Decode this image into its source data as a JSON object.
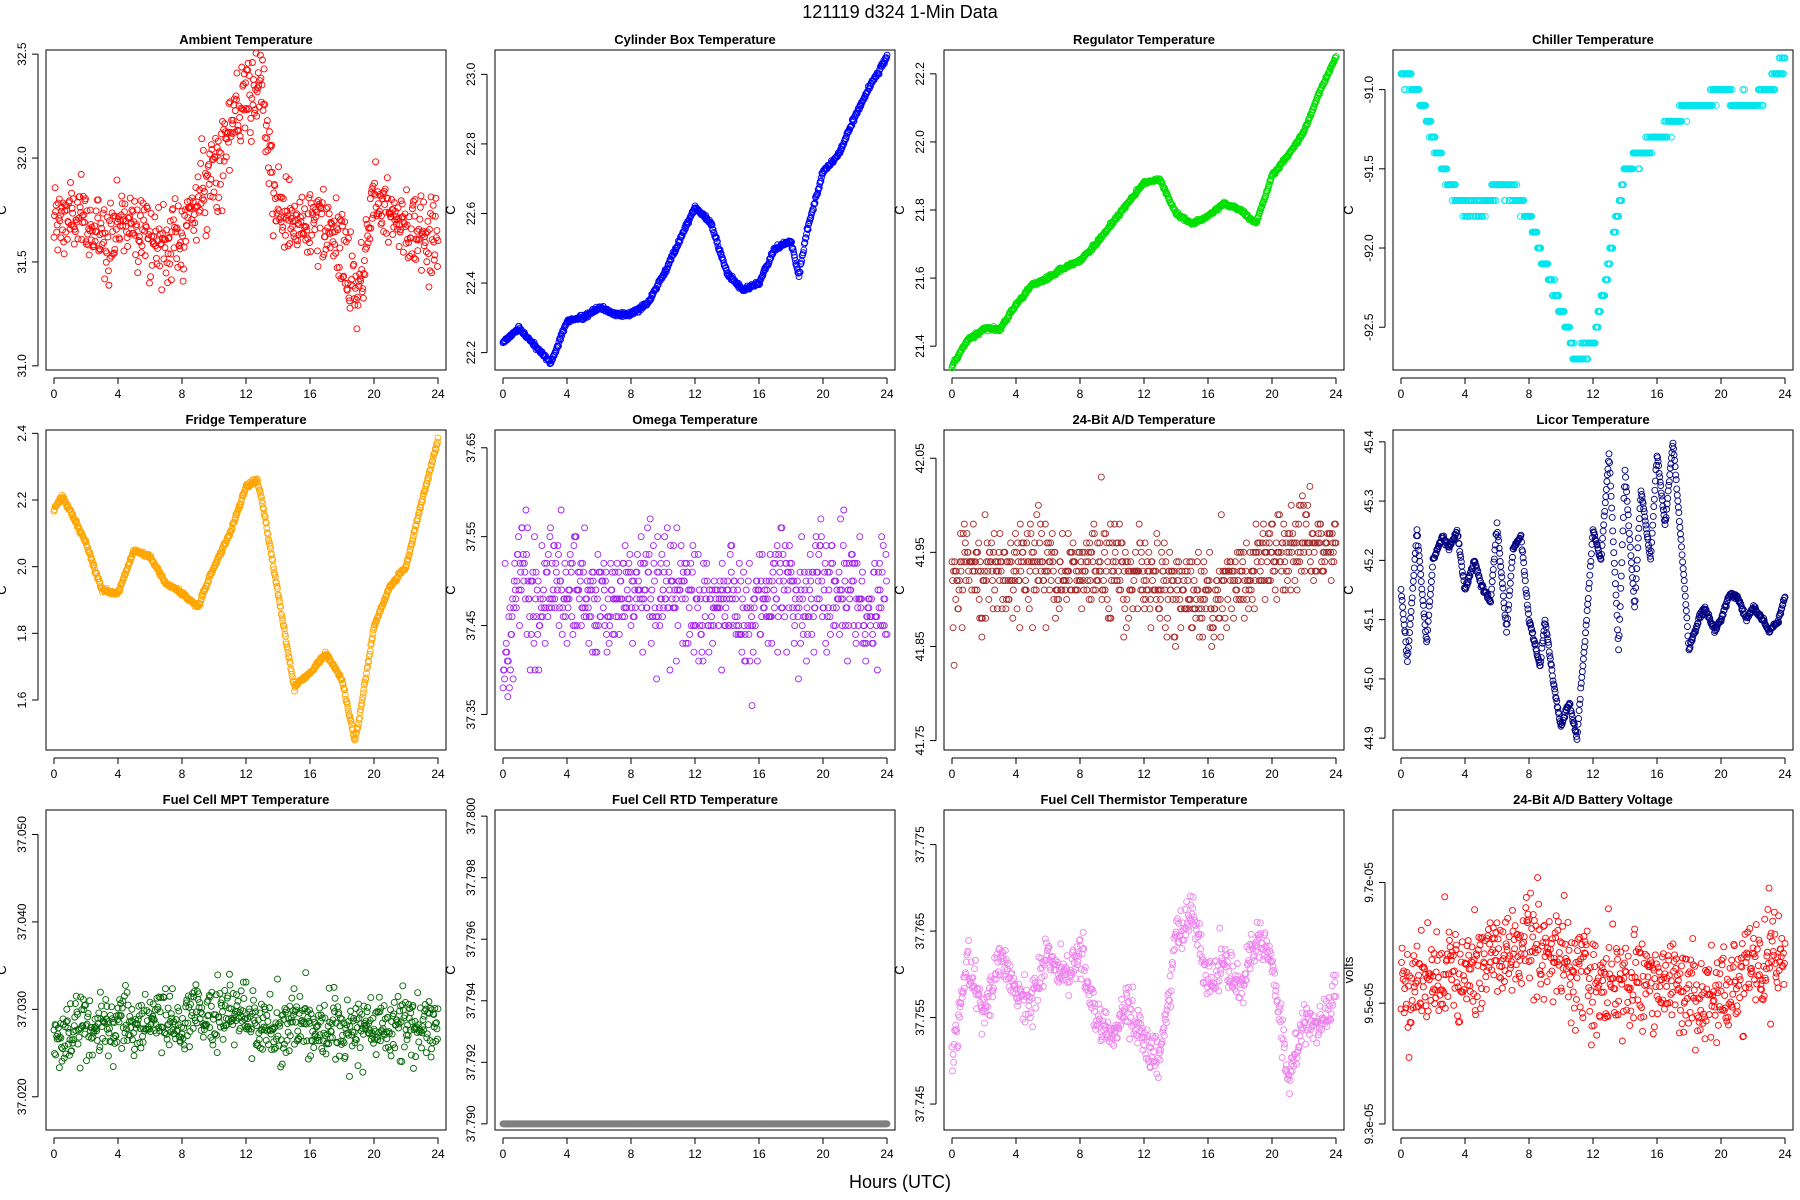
{
  "page_title": "121119    d324    1-Min Data",
  "x_axis_caption": "Hours (UTC)",
  "chart_data": [
    {
      "type": "scatter",
      "title": "Ambient Temperature",
      "ylabel": "C",
      "color": "#ff0000",
      "ylim": [
        30.98,
        32.52
      ],
      "yticks": [
        31.0,
        31.5,
        32.0,
        32.5
      ],
      "ytick_labels": [
        "31.0",
        "31.5",
        "32.0",
        "32.5"
      ],
      "xlim": [
        -0.5,
        24.5
      ],
      "xticks": [
        0,
        4,
        8,
        12,
        16,
        20,
        24
      ],
      "xtick_labels": [
        "0",
        "4",
        "8",
        "12",
        "16",
        "20",
        "24"
      ],
      "noise": 0.17,
      "quantum": 0,
      "x": [
        0,
        1,
        2,
        3,
        4,
        5,
        6,
        7,
        8,
        9,
        10,
        11,
        12,
        13,
        14,
        15,
        16,
        17,
        18,
        19,
        20,
        21,
        22,
        23,
        24
      ],
      "y": [
        31.68,
        31.72,
        31.68,
        31.62,
        31.68,
        31.72,
        31.62,
        31.58,
        31.64,
        31.8,
        31.96,
        32.12,
        32.28,
        32.3,
        31.72,
        31.68,
        31.7,
        31.64,
        31.58,
        31.32,
        31.82,
        31.78,
        31.66,
        31.64,
        31.6
      ]
    },
    {
      "type": "scatter",
      "title": "Cylinder Box Temperature",
      "ylabel": "C",
      "color": "#0000ff",
      "ylim": [
        22.15,
        23.07
      ],
      "yticks": [
        22.2,
        22.4,
        22.6,
        22.8,
        23.0
      ],
      "ytick_labels": [
        "22.2",
        "22.4",
        "22.6",
        "22.8",
        "23.0"
      ],
      "xlim": [
        -0.5,
        24.5
      ],
      "xticks": [
        0,
        4,
        8,
        12,
        16,
        20,
        24
      ],
      "xtick_labels": [
        "0",
        "4",
        "8",
        "12",
        "16",
        "20",
        "24"
      ],
      "noise": 0.006,
      "quantum": 0,
      "x": [
        0,
        1,
        2,
        3,
        3.5,
        4,
        5,
        6,
        7,
        8,
        9,
        10,
        11,
        12,
        13,
        14,
        15,
        16,
        17,
        18,
        18.5,
        19,
        20,
        21,
        22,
        23,
        24
      ],
      "y": [
        22.23,
        22.27,
        22.22,
        22.17,
        22.23,
        22.29,
        22.3,
        22.33,
        22.31,
        22.31,
        22.34,
        22.42,
        22.52,
        22.62,
        22.57,
        22.43,
        22.38,
        22.4,
        22.5,
        22.52,
        22.42,
        22.55,
        22.72,
        22.77,
        22.88,
        22.97,
        23.05
      ]
    },
    {
      "type": "scatter",
      "title": "Regulator Temperature",
      "ylabel": "C",
      "color": "#00e000",
      "ylim": [
        21.33,
        22.27
      ],
      "yticks": [
        21.4,
        21.6,
        21.8,
        22.0,
        22.2
      ],
      "ytick_labels": [
        "21.4",
        "21.6",
        "21.8",
        "22.0",
        "22.2"
      ],
      "xlim": [
        -0.5,
        24.5
      ],
      "xticks": [
        0,
        4,
        8,
        12,
        16,
        20,
        24
      ],
      "xtick_labels": [
        "0",
        "4",
        "8",
        "12",
        "16",
        "20",
        "24"
      ],
      "noise": 0.005,
      "quantum": 0,
      "x": [
        0,
        1,
        2,
        3,
        4,
        5,
        6,
        7,
        8,
        9,
        10,
        11,
        12,
        13,
        14,
        15,
        16,
        17,
        18,
        19,
        20,
        21,
        22,
        23,
        24
      ],
      "y": [
        21.34,
        21.42,
        21.45,
        21.45,
        21.52,
        21.58,
        21.6,
        21.63,
        21.65,
        21.7,
        21.76,
        21.82,
        21.88,
        21.89,
        21.79,
        21.76,
        21.78,
        21.82,
        21.8,
        21.76,
        21.9,
        21.96,
        22.03,
        22.15,
        22.25
      ]
    },
    {
      "type": "scatter",
      "title": "Chiller Temperature",
      "ylabel": "C",
      "color": "#00e5ee",
      "ylim": [
        -92.77,
        -90.75
      ],
      "yticks": [
        -92.5,
        -92.0,
        -91.5,
        -91.0
      ],
      "ytick_labels": [
        "-92.5",
        "-92.0",
        "-91.5",
        "-91.0"
      ],
      "xlim": [
        -0.5,
        24.5
      ],
      "xticks": [
        0,
        4,
        8,
        12,
        16,
        20,
        24
      ],
      "xtick_labels": [
        "0",
        "4",
        "8",
        "12",
        "16",
        "20",
        "24"
      ],
      "noise": 0.04,
      "quantum": 0.1,
      "x": [
        0,
        1,
        2,
        3,
        4,
        5,
        6,
        7,
        8,
        9,
        10,
        11,
        12,
        13,
        14,
        15,
        16,
        17,
        18,
        19,
        20,
        21,
        22,
        23,
        24
      ],
      "y": [
        -90.9,
        -91.0,
        -91.3,
        -91.6,
        -91.75,
        -91.75,
        -91.6,
        -91.65,
        -91.8,
        -92.1,
        -92.4,
        -92.7,
        -92.6,
        -92.1,
        -91.5,
        -91.4,
        -91.3,
        -91.2,
        -91.1,
        -91.1,
        -91.0,
        -91.1,
        -91.1,
        -91.0,
        -90.8
      ]
    },
    {
      "type": "scatter",
      "title": "Fridge Temperature",
      "ylabel": "C",
      "color": "#ffa500",
      "ylim": [
        1.45,
        2.41
      ],
      "yticks": [
        1.6,
        1.8,
        2.0,
        2.2,
        2.4
      ],
      "ytick_labels": [
        "1.6",
        "1.8",
        "2.0",
        "2.2",
        "2.4"
      ],
      "xlim": [
        -0.5,
        24.5
      ],
      "xticks": [
        0,
        4,
        8,
        12,
        16,
        20,
        24
      ],
      "xtick_labels": [
        "0",
        "4",
        "8",
        "12",
        "16",
        "20",
        "24"
      ],
      "noise": 0.006,
      "quantum": 0,
      "x": [
        0,
        0.5,
        1,
        2,
        3,
        4,
        5,
        6,
        7,
        8,
        9,
        10,
        11,
        12,
        12.7,
        13,
        14,
        15,
        16,
        17,
        18,
        18.8,
        19,
        20,
        21,
        22,
        23,
        24
      ],
      "y": [
        2.17,
        2.21,
        2.17,
        2.07,
        1.93,
        1.92,
        2.05,
        2.03,
        1.95,
        1.92,
        1.88,
        2.0,
        2.1,
        2.24,
        2.26,
        2.2,
        1.92,
        1.64,
        1.68,
        1.74,
        1.66,
        1.48,
        1.52,
        1.82,
        1.94,
        2.0,
        2.2,
        2.38
      ]
    },
    {
      "type": "scatter",
      "title": "Omega Temperature",
      "ylabel": "C",
      "color": "#a020f0",
      "ylim": [
        37.31,
        37.67
      ],
      "yticks": [
        37.35,
        37.45,
        37.55,
        37.65
      ],
      "ytick_labels": [
        "37.35",
        "37.45",
        "37.55",
        "37.65"
      ],
      "xlim": [
        -0.5,
        24.5
      ],
      "xticks": [
        0,
        4,
        8,
        12,
        16,
        20,
        24
      ],
      "xtick_labels": [
        "0",
        "4",
        "8",
        "12",
        "16",
        "20",
        "24"
      ],
      "noise": 0.06,
      "quantum": 0.01,
      "x": [
        0,
        1,
        2,
        3,
        4,
        5,
        6,
        7,
        8,
        9,
        10,
        11,
        12,
        13,
        14,
        15,
        16,
        17,
        18,
        19,
        20,
        21,
        22,
        23,
        24
      ],
      "y": [
        37.38,
        37.52,
        37.46,
        37.5,
        37.49,
        37.49,
        37.47,
        37.48,
        37.49,
        37.5,
        37.49,
        37.5,
        37.46,
        37.47,
        37.49,
        37.46,
        37.48,
        37.5,
        37.48,
        37.47,
        37.5,
        37.49,
        37.48,
        37.47,
        37.48
      ]
    },
    {
      "type": "scatter",
      "title": "24-Bit A/D Temperature",
      "ylabel": "C",
      "color": "#a52a2a",
      "ylim": [
        41.74,
        42.08
      ],
      "yticks": [
        41.75,
        41.85,
        41.95,
        42.05
      ],
      "ytick_labels": [
        "41.75",
        "41.85",
        "41.95",
        "42.05"
      ],
      "xlim": [
        -0.5,
        24.5
      ],
      "xticks": [
        0,
        4,
        8,
        12,
        16,
        20,
        24
      ],
      "xtick_labels": [
        "0",
        "4",
        "8",
        "12",
        "16",
        "20",
        "24"
      ],
      "noise": 0.045,
      "quantum": 0.01,
      "x": [
        0,
        1,
        2,
        3,
        4,
        5,
        6,
        7,
        8,
        9,
        10,
        11,
        12,
        13,
        14,
        15,
        16,
        17,
        18,
        19,
        20,
        21,
        22,
        23,
        24
      ],
      "y": [
        41.91,
        41.94,
        41.93,
        41.93,
        41.93,
        41.94,
        41.93,
        41.93,
        41.93,
        41.94,
        41.93,
        41.92,
        41.92,
        41.92,
        41.91,
        41.9,
        41.9,
        41.91,
        41.92,
        41.93,
        41.95,
        41.95,
        41.96,
        41.96,
        41.96
      ]
    },
    {
      "type": "scatter",
      "title": "Licor Temperature",
      "ylabel": "C",
      "color": "#000080",
      "ylim": [
        44.88,
        45.42
      ],
      "yticks": [
        44.9,
        45.0,
        45.1,
        45.2,
        45.3,
        45.4
      ],
      "ytick_labels": [
        "44.9",
        "45.0",
        "45.1",
        "45.2",
        "45.3",
        "45.4"
      ],
      "xlim": [
        -0.5,
        24.5
      ],
      "xticks": [
        0,
        4,
        8,
        12,
        16,
        20,
        24
      ],
      "xtick_labels": [
        "0",
        "4",
        "8",
        "12",
        "16",
        "20",
        "24"
      ],
      "noise": 0.004,
      "quantum": 0,
      "x": [
        0,
        0.4,
        1,
        1.6,
        2,
        2.6,
        3,
        3.5,
        4,
        4.6,
        5,
        5.6,
        6,
        6.6,
        7,
        7.5,
        8,
        8.7,
        9,
        9.6,
        10,
        10.5,
        11,
        11.6,
        12,
        12.5,
        13,
        13.6,
        14,
        14.6,
        15,
        15.6,
        16,
        16.5,
        17,
        17.6,
        18,
        18.6,
        19,
        19.6,
        20,
        20.5,
        21,
        21.6,
        22,
        22.6,
        23,
        23.6,
        24
      ],
      "y": [
        45.15,
        45.03,
        45.25,
        45.06,
        45.2,
        45.24,
        45.22,
        45.25,
        45.15,
        45.2,
        45.16,
        45.13,
        45.26,
        45.08,
        45.22,
        45.24,
        45.1,
        45.02,
        45.1,
        44.98,
        44.92,
        44.96,
        44.9,
        45.1,
        45.25,
        45.2,
        45.38,
        45.05,
        45.35,
        45.12,
        45.32,
        45.2,
        45.38,
        45.26,
        45.4,
        45.2,
        45.05,
        45.1,
        45.12,
        45.08,
        45.1,
        45.14,
        45.14,
        45.1,
        45.12,
        45.1,
        45.08,
        45.1,
        45.14
      ]
    },
    {
      "type": "scatter",
      "title": "Fuel Cell MPT Temperature",
      "ylabel": "C",
      "color": "#006400",
      "ylim": [
        37.0162,
        37.0528
      ],
      "yticks": [
        37.02,
        37.03,
        37.04,
        37.05
      ],
      "ytick_labels": [
        "37.020",
        "37.030",
        "37.040",
        "37.050"
      ],
      "xlim": [
        -0.5,
        24.5
      ],
      "xticks": [
        0,
        4,
        8,
        12,
        16,
        20,
        24
      ],
      "xtick_labels": [
        "0",
        "4",
        "8",
        "12",
        "16",
        "20",
        "24"
      ],
      "noise": 0.0034,
      "quantum": 0,
      "x": [
        0,
        2,
        4,
        6,
        8,
        10,
        12,
        14,
        16,
        18,
        20,
        22,
        24
      ],
      "y": [
        37.0275,
        37.028,
        37.028,
        37.0285,
        37.029,
        37.0295,
        37.029,
        37.0275,
        37.028,
        37.0275,
        37.0275,
        37.028,
        37.028
      ]
    },
    {
      "type": "scatter",
      "title": "Fuel Cell RTD Temperature",
      "ylabel": "C",
      "color": "#808080",
      "ylim": [
        37.7898,
        37.8002
      ],
      "yticks": [
        37.79,
        37.792,
        37.794,
        37.796,
        37.798,
        37.8
      ],
      "ytick_labels": [
        "37.790",
        "37.792",
        "37.794",
        "37.796",
        "37.798",
        "37.800"
      ],
      "xlim": [
        -0.5,
        24.5
      ],
      "xticks": [
        0,
        4,
        8,
        12,
        16,
        20,
        24
      ],
      "xtick_labels": [
        "0",
        "4",
        "8",
        "12",
        "16",
        "20",
        "24"
      ],
      "noise": 0,
      "quantum": 0,
      "x": [
        0,
        24
      ],
      "y": [
        37.79,
        37.79
      ]
    },
    {
      "type": "scatter",
      "title": "Fuel Cell Thermistor Temperature",
      "ylabel": "C",
      "color": "#ee82ee",
      "ylim": [
        37.742,
        37.779
      ],
      "yticks": [
        37.745,
        37.755,
        37.765,
        37.775
      ],
      "ytick_labels": [
        "37.745",
        "37.755",
        "37.765",
        "37.775"
      ],
      "xlim": [
        -0.5,
        24.5
      ],
      "xticks": [
        0,
        4,
        8,
        12,
        16,
        20,
        24
      ],
      "xtick_labels": [
        "0",
        "4",
        "8",
        "12",
        "16",
        "20",
        "24"
      ],
      "noise": 0.0022,
      "quantum": 0,
      "x": [
        0,
        1,
        2,
        3,
        4,
        5,
        6,
        7,
        8,
        9,
        10,
        11,
        12,
        13,
        14,
        15,
        16,
        17,
        18,
        19,
        20,
        21,
        22,
        23,
        24
      ],
      "y": [
        37.75,
        37.762,
        37.755,
        37.762,
        37.758,
        37.757,
        37.762,
        37.76,
        37.763,
        37.755,
        37.753,
        37.757,
        37.752,
        37.75,
        37.764,
        37.768,
        37.758,
        37.762,
        37.758,
        37.764,
        37.762,
        37.748,
        37.755,
        37.754,
        37.758
      ]
    },
    {
      "type": "scatter",
      "title": "24-Bit A/D Battery Voltage",
      "ylabel": "volts",
      "color": "#ff0000",
      "ylim": [
        9.29e-05,
        9.82e-05
      ],
      "yticks": [
        9.3e-05,
        9.5e-05,
        9.7e-05
      ],
      "ytick_labels": [
        "9.3e-05",
        "9.5e-05",
        "9.7e-05"
      ],
      "xlim": [
        -0.5,
        24.5
      ],
      "xticks": [
        0,
        4,
        8,
        12,
        16,
        20,
        24
      ],
      "xtick_labels": [
        "0",
        "4",
        "8",
        "12",
        "16",
        "20",
        "24"
      ],
      "noise": 7e-07,
      "quantum": 0,
      "x": [
        0,
        2,
        4,
        6,
        8,
        10,
        12,
        14,
        16,
        18,
        20,
        22,
        24
      ],
      "y": [
        9.52e-05,
        9.54e-05,
        9.56e-05,
        9.58e-05,
        9.6e-05,
        9.57e-05,
        9.54e-05,
        9.53e-05,
        9.54e-05,
        9.52e-05,
        9.51e-05,
        9.56e-05,
        9.58e-05
      ]
    }
  ]
}
